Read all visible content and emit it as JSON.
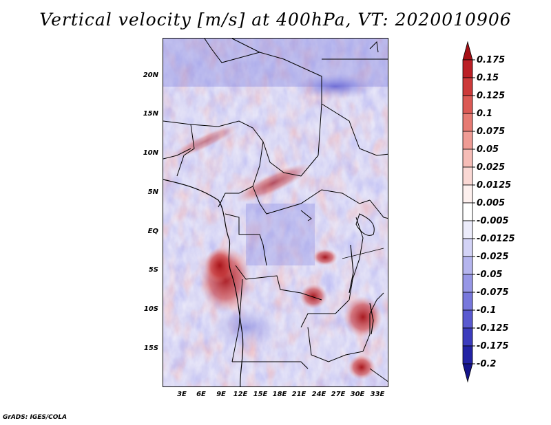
{
  "title": "Vertical velocity [m/s] at 400hPa, VT: 2020010906",
  "footer": "GrADS: IGES/COLA",
  "map": {
    "lat_labels": [
      "20N",
      "15N",
      "10N",
      "5N",
      "EQ",
      "5S",
      "10S",
      "15S"
    ],
    "lon_labels": [
      "3E",
      "6E",
      "9E",
      "12E",
      "15E",
      "18E",
      "21E",
      "24E",
      "27E",
      "30E",
      "33E"
    ]
  },
  "colorbar": {
    "labels": [
      "0.175",
      "0.15",
      "0.125",
      "0.1",
      "0.075",
      "0.05",
      "0.025",
      "0.0125",
      "0.005",
      "-0.005",
      "-0.0125",
      "-0.025",
      "-0.05",
      "-0.075",
      "-0.1",
      "-0.125",
      "-0.175",
      "-0.2"
    ],
    "colors": [
      "#a50f15",
      "#bb2026",
      "#cc3a3a",
      "#db5a55",
      "#e67b73",
      "#ef9c95",
      "#f6bdb7",
      "#fad8d4",
      "#fdf0ee",
      "#ffffff",
      "#ececfb",
      "#d3d3f6",
      "#b5b5ee",
      "#9797e6",
      "#7878dc",
      "#5a5ad0",
      "#3c3cbd",
      "#2323a4",
      "#15148a"
    ]
  }
}
